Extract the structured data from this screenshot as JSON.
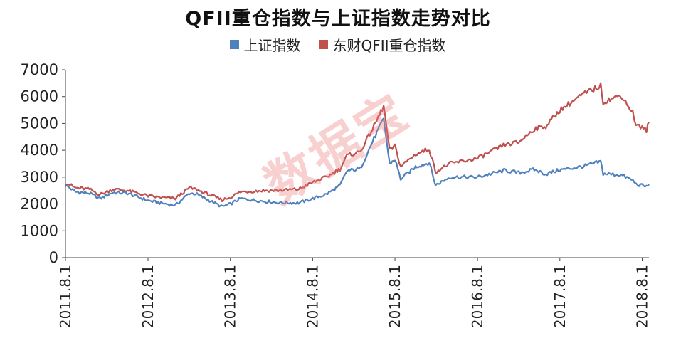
{
  "colors": {
    "sh_series": "#4f81bd",
    "qfii_series": "#c0504d",
    "axis": "#444444",
    "text": "#222222",
    "watermark": "#eb7878"
  },
  "watermark_text": "数据宝",
  "chart_data": {
    "type": "line",
    "title": "QFII重仓指数与上证指数走势对比",
    "legend_position": "top",
    "grid": false,
    "x_ticks": [
      "2011.8.1",
      "2012.8.1",
      "2013.8.1",
      "2014.8.1",
      "2015.8.1",
      "2016.8.1",
      "2017.8.1",
      "2018.8.1"
    ],
    "xlim": [
      "2011-08-01",
      "2018-08-31"
    ],
    "ylim": [
      0,
      7000
    ],
    "y_ticks": [
      "0",
      "1000",
      "2000",
      "3000",
      "4000",
      "5000",
      "6000",
      "7000"
    ],
    "series": [
      {
        "name": "上证指数",
        "points": [
          [
            "2011-08-01",
            2700
          ],
          [
            "2011-09-15",
            2450
          ],
          [
            "2011-11-15",
            2400
          ],
          [
            "2011-12-31",
            2200
          ],
          [
            "2012-02-28",
            2430
          ],
          [
            "2012-05-01",
            2400
          ],
          [
            "2012-08-01",
            2130
          ],
          [
            "2012-09-15",
            2050
          ],
          [
            "2012-11-30",
            1950
          ],
          [
            "2013-01-31",
            2400
          ],
          [
            "2013-02-28",
            2380
          ],
          [
            "2013-06-25",
            1900
          ],
          [
            "2013-08-01",
            2000
          ],
          [
            "2013-09-15",
            2200
          ],
          [
            "2013-12-31",
            2100
          ],
          [
            "2014-02-28",
            2050
          ],
          [
            "2014-05-31",
            2040
          ],
          [
            "2014-08-01",
            2200
          ],
          [
            "2014-09-30",
            2360
          ],
          [
            "2014-11-30",
            2680
          ],
          [
            "2014-12-31",
            3230
          ],
          [
            "2015-02-28",
            3310
          ],
          [
            "2015-04-30",
            4440
          ],
          [
            "2015-06-12",
            5170
          ],
          [
            "2015-07-08",
            3500
          ],
          [
            "2015-08-01",
            3660
          ],
          [
            "2015-08-26",
            2930
          ],
          [
            "2015-10-31",
            3380
          ],
          [
            "2015-12-31",
            3540
          ],
          [
            "2016-01-28",
            2700
          ],
          [
            "2016-03-31",
            3000
          ],
          [
            "2016-08-01",
            3000
          ],
          [
            "2016-11-30",
            3250
          ],
          [
            "2017-01-31",
            3160
          ],
          [
            "2017-04-10",
            3280
          ],
          [
            "2017-05-31",
            3110
          ],
          [
            "2017-08-01",
            3270
          ],
          [
            "2017-11-15",
            3400
          ],
          [
            "2018-01-29",
            3580
          ],
          [
            "2018-02-09",
            3130
          ],
          [
            "2018-04-30",
            3080
          ],
          [
            "2018-06-20",
            2880
          ],
          [
            "2018-07-05",
            2740
          ],
          [
            "2018-08-20",
            2650
          ],
          [
            "2018-08-31",
            2730
          ]
        ]
      },
      {
        "name": "东财QFII重仓指数",
        "points": [
          [
            "2011-08-01",
            2800
          ],
          [
            "2011-09-15",
            2600
          ],
          [
            "2011-11-15",
            2550
          ],
          [
            "2011-12-31",
            2350
          ],
          [
            "2012-02-28",
            2550
          ],
          [
            "2012-05-01",
            2500
          ],
          [
            "2012-08-01",
            2300
          ],
          [
            "2012-09-15",
            2250
          ],
          [
            "2012-11-30",
            2200
          ],
          [
            "2013-01-31",
            2600
          ],
          [
            "2013-02-28",
            2550
          ],
          [
            "2013-06-25",
            2150
          ],
          [
            "2013-08-01",
            2250
          ],
          [
            "2013-09-15",
            2450
          ],
          [
            "2013-12-31",
            2500
          ],
          [
            "2014-02-28",
            2500
          ],
          [
            "2014-05-31",
            2550
          ],
          [
            "2014-08-01",
            2800
          ],
          [
            "2014-09-30",
            3000
          ],
          [
            "2014-11-30",
            3300
          ],
          [
            "2014-12-31",
            3800
          ],
          [
            "2015-02-28",
            3950
          ],
          [
            "2015-04-30",
            4900
          ],
          [
            "2015-06-12",
            5650
          ],
          [
            "2015-07-08",
            4000
          ],
          [
            "2015-08-01",
            4150
          ],
          [
            "2015-08-26",
            3400
          ],
          [
            "2015-10-31",
            3850
          ],
          [
            "2015-12-31",
            4050
          ],
          [
            "2016-01-28",
            3200
          ],
          [
            "2016-03-31",
            3500
          ],
          [
            "2016-08-01",
            3700
          ],
          [
            "2016-11-30",
            4200
          ],
          [
            "2017-01-31",
            4300
          ],
          [
            "2017-04-10",
            4800
          ],
          [
            "2017-05-31",
            4900
          ],
          [
            "2017-08-01",
            5500
          ],
          [
            "2017-11-15",
            6100
          ],
          [
            "2018-01-29",
            6400
          ],
          [
            "2018-02-09",
            5800
          ],
          [
            "2018-04-30",
            6050
          ],
          [
            "2018-06-20",
            5400
          ],
          [
            "2018-07-05",
            4950
          ],
          [
            "2018-08-20",
            4750
          ],
          [
            "2018-08-31",
            5050
          ]
        ]
      }
    ]
  }
}
